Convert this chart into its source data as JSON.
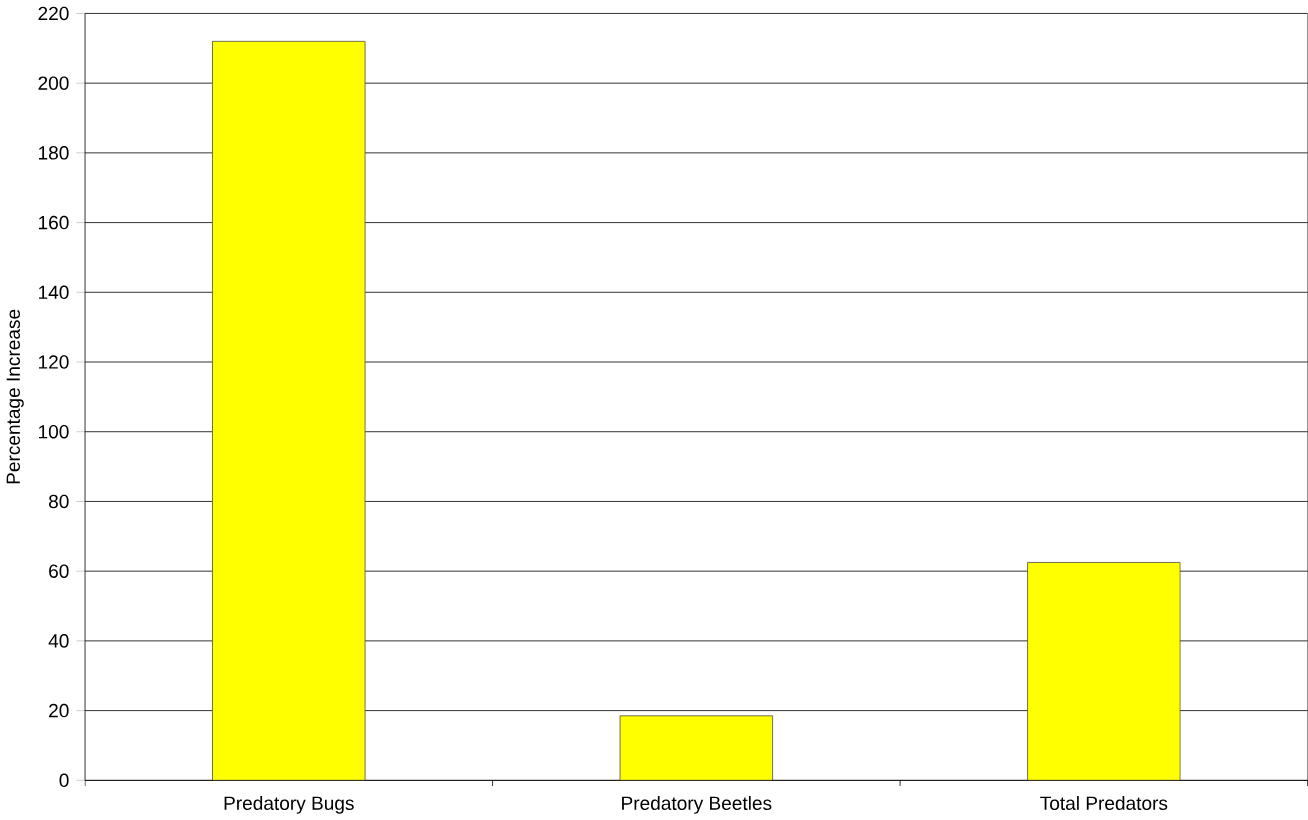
{
  "chart_data": {
    "type": "bar",
    "ylabel": "Percentage Increase",
    "categories": [
      "Predatory Bugs",
      "Predatory Beetles",
      "Total Predators"
    ],
    "values": [
      212,
      18.5,
      62.5
    ],
    "color": "#ffff00",
    "ylim": [
      0,
      220
    ],
    "yticks": [
      0,
      20,
      40,
      60,
      80,
      100,
      120,
      140,
      160,
      180,
      200,
      220
    ],
    "grid": "y"
  }
}
